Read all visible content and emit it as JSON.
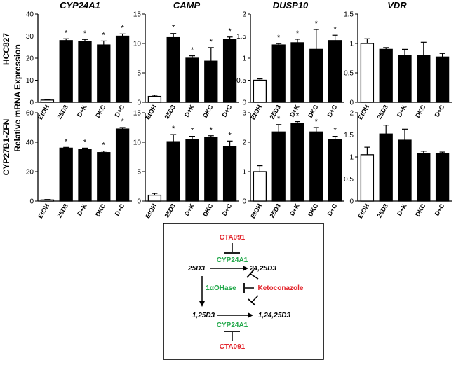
{
  "figure": {
    "row_titles": [
      "HCC827",
      "CYP27B1-ZFN"
    ],
    "ylabel_shared": "Relative mRNA Expression",
    "column_titles": [
      "CYP24A1",
      "CAMP",
      "DUSP10",
      "VDR"
    ]
  },
  "chart_data": [
    {
      "type": "bar",
      "row": "HCC827",
      "gene": "CYP24A1",
      "title": "CYP24A1",
      "categories": [
        "EtOH",
        "25D3",
        "D+K",
        "DKC",
        "D+C"
      ],
      "values": [
        1,
        28,
        27.5,
        26,
        30
      ],
      "errors": [
        0.3,
        0.8,
        1,
        1.8,
        1
      ],
      "significant": [
        false,
        true,
        true,
        true,
        true
      ],
      "ylim": [
        0,
        40
      ],
      "yticks": [
        0,
        10,
        20,
        30,
        40
      ]
    },
    {
      "type": "bar",
      "row": "HCC827",
      "gene": "CAMP",
      "title": "CAMP",
      "categories": [
        "EtOH",
        "25D3",
        "D+K",
        "DKC",
        "D+C"
      ],
      "values": [
        1,
        11,
        7.5,
        7,
        10.7
      ],
      "errors": [
        0.2,
        0.7,
        0.4,
        2.3,
        0.4
      ],
      "significant": [
        false,
        true,
        true,
        true,
        true
      ],
      "ylim": [
        0,
        15
      ],
      "yticks": [
        0,
        5,
        10,
        15
      ]
    },
    {
      "type": "bar",
      "row": "HCC827",
      "gene": "DUSP10",
      "title": "DUSP10",
      "categories": [
        "EtOH",
        "25D3",
        "D+K",
        "DKC",
        "D+C"
      ],
      "values": [
        0.5,
        1.3,
        1.35,
        1.2,
        1.4
      ],
      "errors": [
        0.03,
        0.03,
        0.08,
        0.45,
        0.12
      ],
      "significant": [
        false,
        true,
        true,
        true,
        true
      ],
      "ylim": [
        0,
        2
      ],
      "yticks": [
        0,
        0.5,
        1,
        1.5,
        2
      ]
    },
    {
      "type": "bar",
      "row": "HCC827",
      "gene": "VDR",
      "title": "VDR",
      "categories": [
        "EtOH",
        "25D3",
        "D+K",
        "DKC",
        "D+C"
      ],
      "values": [
        1,
        0.9,
        0.8,
        0.8,
        0.77
      ],
      "errors": [
        0.08,
        0.03,
        0.1,
        0.22,
        0.06
      ],
      "significant": [
        false,
        false,
        false,
        false,
        false
      ],
      "ylim": [
        0,
        1.5
      ],
      "yticks": [
        0,
        0.5,
        1,
        1.5
      ]
    },
    {
      "type": "bar",
      "row": "CYP27B1-ZFN",
      "gene": "CYP24A1",
      "title": "",
      "categories": [
        "EtOH",
        "25D3",
        "D+K",
        "DKC",
        "D+C"
      ],
      "values": [
        0.8,
        36,
        35,
        33,
        49
      ],
      "errors": [
        0.3,
        0.5,
        1,
        1,
        1
      ],
      "significant": [
        false,
        true,
        true,
        true,
        true
      ],
      "ylim": [
        0,
        60
      ],
      "yticks": [
        0,
        20,
        40,
        60
      ]
    },
    {
      "type": "bar",
      "row": "CYP27B1-ZFN",
      "gene": "CAMP",
      "title": "",
      "categories": [
        "EtOH",
        "25D3",
        "D+K",
        "DKC",
        "D+C"
      ],
      "values": [
        1,
        10.1,
        10.4,
        10.8,
        9.3
      ],
      "errors": [
        0.3,
        1.2,
        0.6,
        0.3,
        0.9
      ],
      "significant": [
        false,
        true,
        true,
        true,
        true
      ],
      "ylim": [
        0,
        15
      ],
      "yticks": [
        0,
        5,
        10,
        15
      ]
    },
    {
      "type": "bar",
      "row": "CYP27B1-ZFN",
      "gene": "DUSP10",
      "title": "",
      "categories": [
        "EtOH",
        "25D3",
        "D+K",
        "DKC",
        "D+C"
      ],
      "values": [
        1,
        2.35,
        2.65,
        2.35,
        2.1
      ],
      "errors": [
        0.2,
        0.25,
        0.05,
        0.15,
        0.1
      ],
      "significant": [
        false,
        true,
        true,
        true,
        true
      ],
      "ylim": [
        0,
        3
      ],
      "yticks": [
        0,
        1,
        2,
        3
      ]
    },
    {
      "type": "bar",
      "row": "CYP27B1-ZFN",
      "gene": "VDR",
      "title": "",
      "categories": [
        "EtOH",
        "25D3",
        "D+K",
        "DKC",
        "D+C"
      ],
      "values": [
        1.05,
        1.52,
        1.38,
        1.07,
        1.08
      ],
      "errors": [
        0.17,
        0.2,
        0.25,
        0.06,
        0.03
      ],
      "significant": [
        false,
        false,
        false,
        false,
        false
      ],
      "ylim": [
        0,
        2
      ],
      "yticks": [
        0,
        0.5,
        1,
        1.5,
        2
      ]
    }
  ],
  "diagram": {
    "inhibitor_top": "CTA091",
    "enzyme_top": "CYP24A1",
    "substrate": "25D3",
    "product_top": "24,25D3",
    "enzyme_middle": "1αOHase",
    "inhibitor_middle": "Ketoconazole",
    "active_form": "1,25D3",
    "product_bottom": "1,24,25D3",
    "enzyme_bottom": "CYP24A1",
    "inhibitor_bottom": "CTA091",
    "colors": {
      "inhibitor": "#e3242b",
      "enzyme": "#22a84a",
      "metabolite": "#000000"
    }
  }
}
